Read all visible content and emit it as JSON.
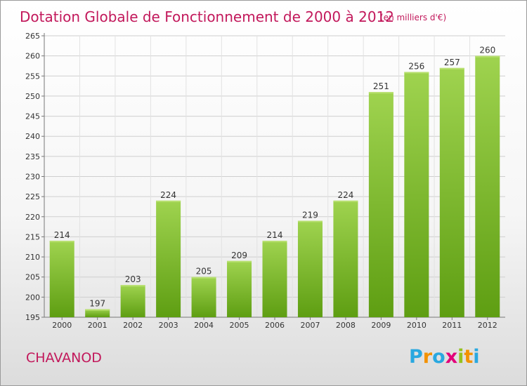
{
  "chart_data": {
    "type": "bar",
    "title": "Dotation Globale de Fonctionnement de 2000 à 2012",
    "subtitle": "(en milliers d'€)",
    "categories": [
      "2000",
      "2001",
      "2002",
      "2003",
      "2004",
      "2005",
      "2006",
      "2007",
      "2008",
      "2009",
      "2010",
      "2011",
      "2012"
    ],
    "values": [
      214,
      197,
      203,
      224,
      205,
      209,
      214,
      219,
      224,
      251,
      256,
      257,
      260
    ],
    "ylim": [
      195,
      265
    ],
    "yticks": [
      195,
      200,
      205,
      210,
      215,
      220,
      225,
      230,
      235,
      240,
      245,
      250,
      255,
      260,
      265
    ],
    "grid": true,
    "legend": "none",
    "bar_color_top": "#9fd34f",
    "bar_color_bottom": "#5e9e12",
    "title_color": "#c2185b"
  },
  "footer": {
    "commune": "CHAVANOD",
    "logo": {
      "text": "Proxiti",
      "letters": [
        "P",
        "r",
        "o",
        "x",
        "i",
        "t",
        "i"
      ],
      "colors": [
        "#29a8e0",
        "#f39200",
        "#29a8e0",
        "#e2007a",
        "#95c11f",
        "#f39200",
        "#29a8e0"
      ]
    }
  }
}
